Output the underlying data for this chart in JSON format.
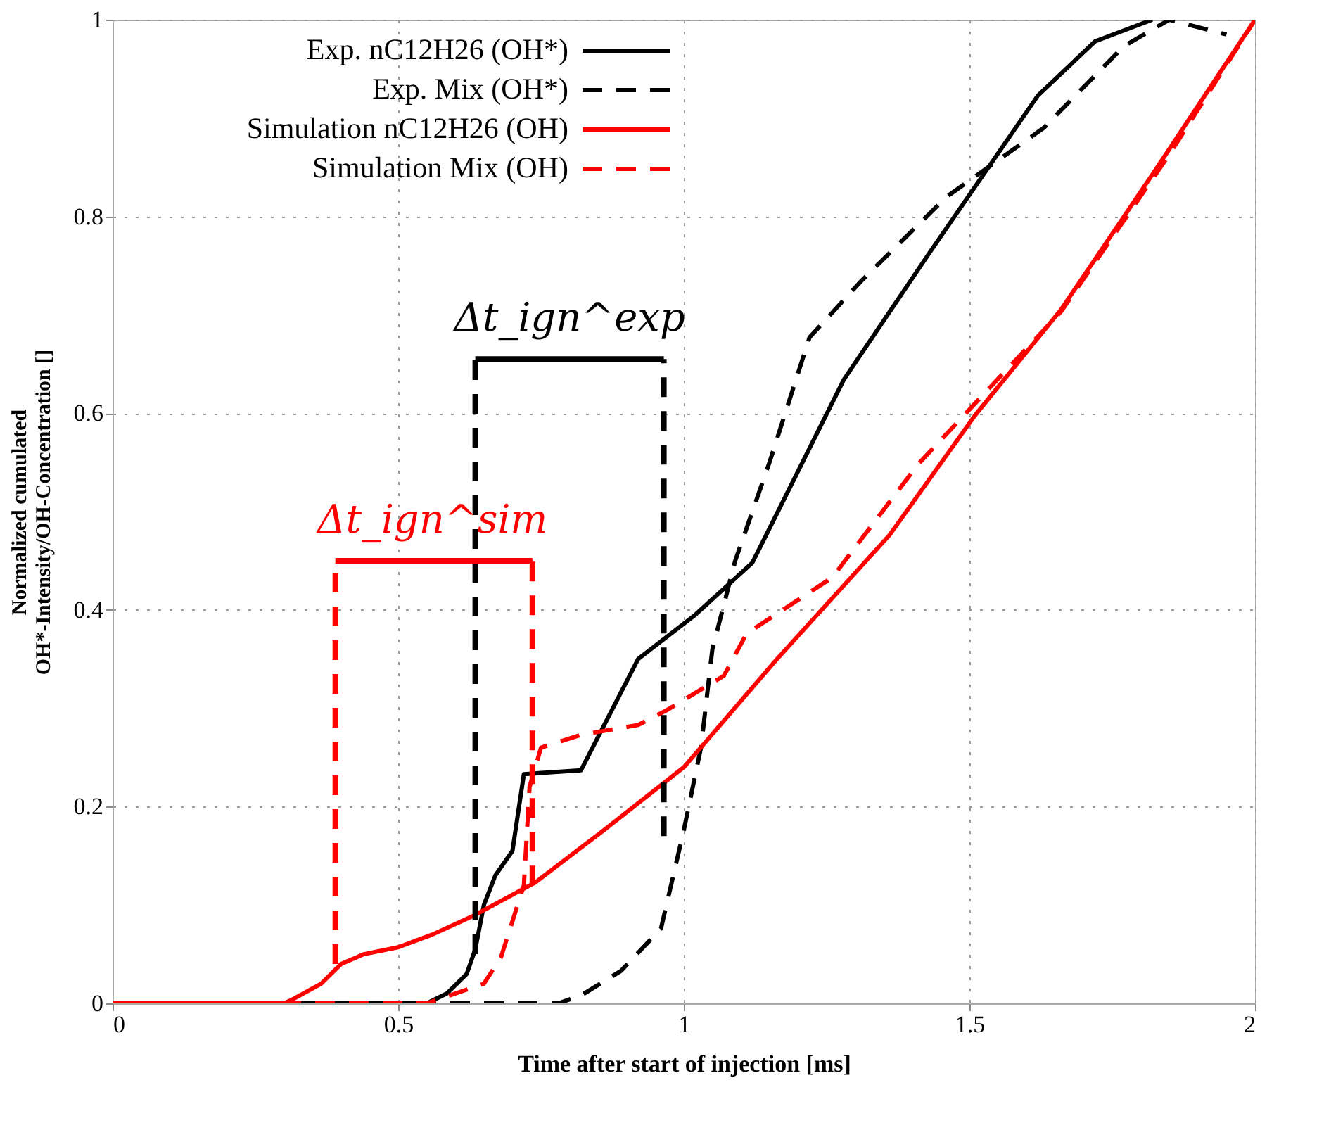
{
  "chart_data": {
    "type": "line",
    "xlabel": "Time after start of injection [ms]",
    "ylabel": "Normalized cumulated\nOH*-Intensity/OH-Concentration []",
    "xlim": [
      0,
      2
    ],
    "ylim": [
      0,
      1
    ],
    "xticks": [
      0,
      0.5,
      1,
      1.5,
      2
    ],
    "yticks": [
      0,
      0.2,
      0.4,
      0.6,
      0.8,
      1
    ],
    "grid": true,
    "legend": "top",
    "line_style": "solid",
    "series": [
      {
        "name": "Exp. nC12H26 (OH*)",
        "color": "#000000",
        "x": [
          0,
          0.55,
          0.585,
          0.62,
          0.635,
          0.65,
          0.67,
          0.7,
          0.72,
          0.82,
          0.92,
          1.02,
          1.12,
          1.28,
          1.43,
          1.62,
          1.72,
          1.82
        ],
        "values": [
          0,
          0,
          0.01,
          0.03,
          0.055,
          0.1,
          0.13,
          0.155,
          0.233,
          0.237,
          0.35,
          0.395,
          0.448,
          0.634,
          0.763,
          0.923,
          0.978,
          1.0
        ]
      },
      {
        "name": "Exp. Mix (OH*)",
        "color": "#000000",
        "line_style": "dashed",
        "x": [
          0,
          0.78,
          0.82,
          0.89,
          0.96,
          1.0,
          1.03,
          1.05,
          1.09,
          1.15,
          1.22,
          1.31,
          1.46,
          1.63,
          1.77,
          1.85,
          1.95
        ],
        "values": [
          0,
          0,
          0.008,
          0.033,
          0.076,
          0.176,
          0.26,
          0.36,
          0.45,
          0.55,
          0.677,
          0.734,
          0.82,
          0.89,
          0.973,
          1.0,
          0.985
        ]
      },
      {
        "name": "Simulation nC12H26 (OH)",
        "color": "#ff0000",
        "x": [
          0,
          0.3,
          0.315,
          0.365,
          0.4,
          0.44,
          0.5,
          0.56,
          0.635,
          0.74,
          0.86,
          1.0,
          1.16,
          1.36,
          1.51,
          1.66,
          1.83,
          2.0
        ],
        "values": [
          0,
          0,
          0.004,
          0.02,
          0.04,
          0.05,
          0.057,
          0.07,
          0.09,
          0.123,
          0.176,
          0.24,
          0.348,
          0.476,
          0.598,
          0.705,
          0.851,
          1.0
        ]
      },
      {
        "name": "Simulation Mix (OH)",
        "color": "#ff0000",
        "line_style": "dashed",
        "x": [
          0,
          0.55,
          0.65,
          0.68,
          0.72,
          0.73,
          0.75,
          0.82,
          0.92,
          0.97,
          1.07,
          1.11,
          1.26,
          1.41,
          1.66,
          1.85,
          2.0
        ],
        "values": [
          0,
          0,
          0.02,
          0.047,
          0.12,
          0.22,
          0.26,
          0.273,
          0.283,
          0.298,
          0.333,
          0.376,
          0.433,
          0.548,
          0.703,
          0.863,
          1.0
        ]
      },
      {
        "color": "#000000",
        "line_style": "dashed",
        "x": [
          0.635,
          0.635
        ],
        "values": [
          0.05,
          0.655
        ]
      },
      {
        "color": "#000000",
        "line_style": "dashed",
        "x": [
          0.965,
          0.965
        ],
        "values": [
          0.17,
          0.655
        ]
      },
      {
        "color": "#000000",
        "x": [
          0.635,
          0.965
        ],
        "values": [
          0.655,
          0.655
        ]
      },
      {
        "color": "#ff0000",
        "line_style": "dashed",
        "x": [
          0.39,
          0.39
        ],
        "values": [
          0.04,
          0.45
        ]
      },
      {
        "color": "#ff0000",
        "line_style": "dashed",
        "x": [
          0.735,
          0.735
        ],
        "values": [
          0.12,
          0.45
        ]
      },
      {
        "color": "#ff0000",
        "x": [
          0.39,
          0.735
        ],
        "values": [
          0.45,
          0.45
        ]
      }
    ],
    "annotations": [
      {
        "text": "Δt_ign^exp",
        "x": 0.8,
        "y": 0.655
      },
      {
        "text": "Δt_ign^sim",
        "x": 0.56,
        "y": 0.45
      }
    ]
  }
}
